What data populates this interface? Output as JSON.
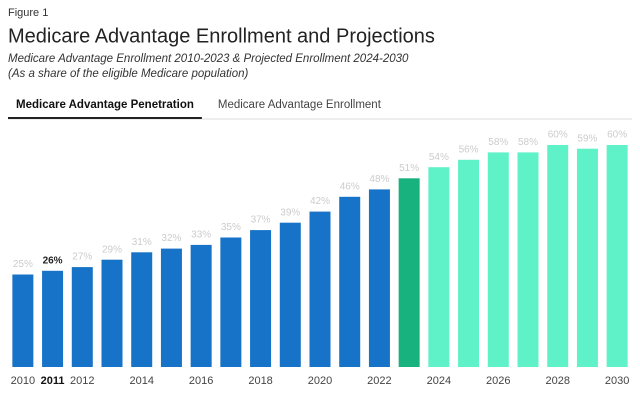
{
  "figure_label": "Figure 1",
  "tabs": [
    "Medicare Advantage Penetration",
    "Medicare Advantage Enrollment"
  ],
  "active_tab": 0,
  "chart_data": {
    "type": "bar",
    "title": "Medicare Advantage Enrollment and Projections",
    "subtitle": "Medicare Advantage Enrollment 2010-2023 & Projected Enrollment 2024-2030",
    "subtitle2": "(As a share of the eligible Medicare population)",
    "categories": [
      "2010",
      "2011",
      "2012",
      null,
      "2014",
      null,
      "2016",
      null,
      "2018",
      null,
      "2020",
      null,
      "2022",
      null,
      "2024",
      null,
      "2026",
      null,
      "2028",
      null,
      "2030"
    ],
    "values": [
      25,
      26,
      27,
      29,
      31,
      32,
      33,
      35,
      37,
      39,
      42,
      46,
      48,
      51,
      54,
      56,
      58,
      58,
      60,
      59,
      60
    ],
    "value_labels": [
      "25%",
      "26%",
      "27%",
      "29%",
      "31%",
      "32%",
      "33%",
      "35%",
      "37%",
      "39%",
      "42%",
      "46%",
      "48%",
      "51%",
      "54%",
      "56%",
      "58%",
      "58%",
      "60%",
      "59%",
      "60%"
    ],
    "colors": [
      "#1673c7",
      "#1673c7",
      "#1673c7",
      "#1673c7",
      "#1673c7",
      "#1673c7",
      "#1673c7",
      "#1673c7",
      "#1673c7",
      "#1673c7",
      "#1673c7",
      "#1673c7",
      "#1673c7",
      "#18b27f",
      "#5ff2c8",
      "#5ff2c8",
      "#5ff2c8",
      "#5ff2c8",
      "#5ff2c8",
      "#5ff2c8",
      "#5ff2c8"
    ],
    "highlighted": 1
  }
}
